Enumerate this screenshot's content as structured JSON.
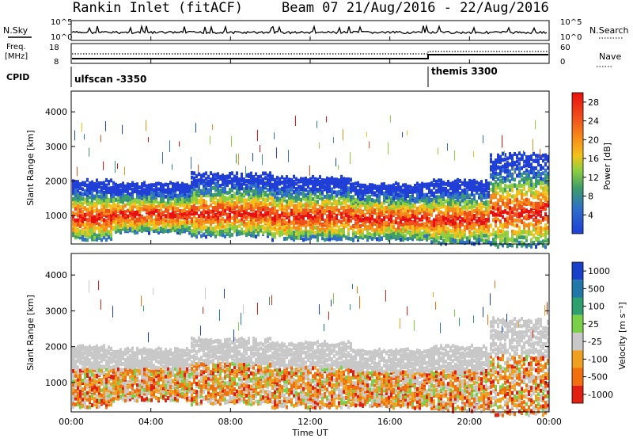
{
  "header": {
    "station": "Rankin Inlet (fitACF)",
    "beam_dates": "Beam 07 21/Aug/2016 - 22/Aug/2016"
  },
  "noise_panel": {
    "left_label": "N.Sky",
    "right_label": "N.Search",
    "top_tick": "10^5",
    "bottom_tick": "10^0",
    "right_top_tick": "10^5",
    "right_bottom_tick": "10^0"
  },
  "freq_panel": {
    "left_label_line1": "Freq.",
    "left_label_line2": "[MHz]",
    "right_label": "Nave",
    "left_ticks": [
      "18",
      "8"
    ],
    "right_ticks": [
      "60",
      "0"
    ]
  },
  "cpid_panel": {
    "label": "CPID",
    "segments": [
      {
        "name": "ulfscan -3350",
        "start_hour": 0
      },
      {
        "name": "themis 3300",
        "start_hour": 18
      }
    ]
  },
  "x_axis": {
    "label": "Time UT",
    "ticks": [
      "00:00",
      "04:00",
      "08:00",
      "12:00",
      "16:00",
      "20:00",
      "00:00"
    ],
    "range_hours": [
      0,
      24
    ]
  },
  "power_panel": {
    "ylabel": "Slant Range [km]",
    "yticks": [
      "1000",
      "2000",
      "3000",
      "4000"
    ],
    "colorbar_label": "Power [dB]",
    "colorbar_ticks": [
      "4",
      "8",
      "12",
      "16",
      "20",
      "24",
      "28"
    ]
  },
  "velocity_panel": {
    "ylabel": "Slant Range [km]",
    "yticks": [
      "1000",
      "2000",
      "3000",
      "4000"
    ],
    "colorbar_label": "Velocity [m s⁻¹]",
    "colorbar_ticks": [
      "1000",
      "500",
      "100",
      "25",
      "-25",
      "-100",
      "-500",
      "-1000"
    ]
  },
  "chart_data": {
    "type": "heatmap",
    "title": "Rankin Inlet (fitACF)",
    "subtitle": "Beam 07 21/Aug/2016 - 22/Aug/2016",
    "xlabel": "Time UT",
    "ylabel": "Slant Range [km]",
    "xlim_hours": [
      0,
      24
    ],
    "ylim_km": [
      180,
      4600
    ],
    "power_scale_db": [
      0,
      30
    ],
    "velocity_scale_ms": [
      -1000,
      1000
    ],
    "power_colors": [
      "#1f3fd6",
      "#2f70c8",
      "#3c9c6a",
      "#8fcf3f",
      "#f2c21a",
      "#f58c1a",
      "#f0501a",
      "#e81010"
    ],
    "velocity_colors": [
      "#1840c8",
      "#1f78a8",
      "#2ea070",
      "#7ccf48",
      "#c8c8c8",
      "#f0a020",
      "#f07010",
      "#e02010"
    ],
    "echo_bands": [
      {
        "from_hour": 0,
        "to_hour": 2,
        "lower_km": 400,
        "upper_km": 2100
      },
      {
        "from_hour": 2,
        "to_hour": 6,
        "lower_km": 600,
        "upper_km": 2000
      },
      {
        "from_hour": 6,
        "to_hour": 10,
        "lower_km": 500,
        "upper_km": 2300
      },
      {
        "from_hour": 10,
        "to_hour": 14,
        "lower_km": 400,
        "upper_km": 2200
      },
      {
        "from_hour": 14,
        "to_hour": 18,
        "lower_km": 400,
        "upper_km": 2000
      },
      {
        "from_hour": 18,
        "to_hour": 21,
        "lower_km": 300,
        "upper_km": 2100
      },
      {
        "from_hour": 21,
        "to_hour": 24,
        "lower_km": 200,
        "upper_km": 2900
      }
    ]
  }
}
